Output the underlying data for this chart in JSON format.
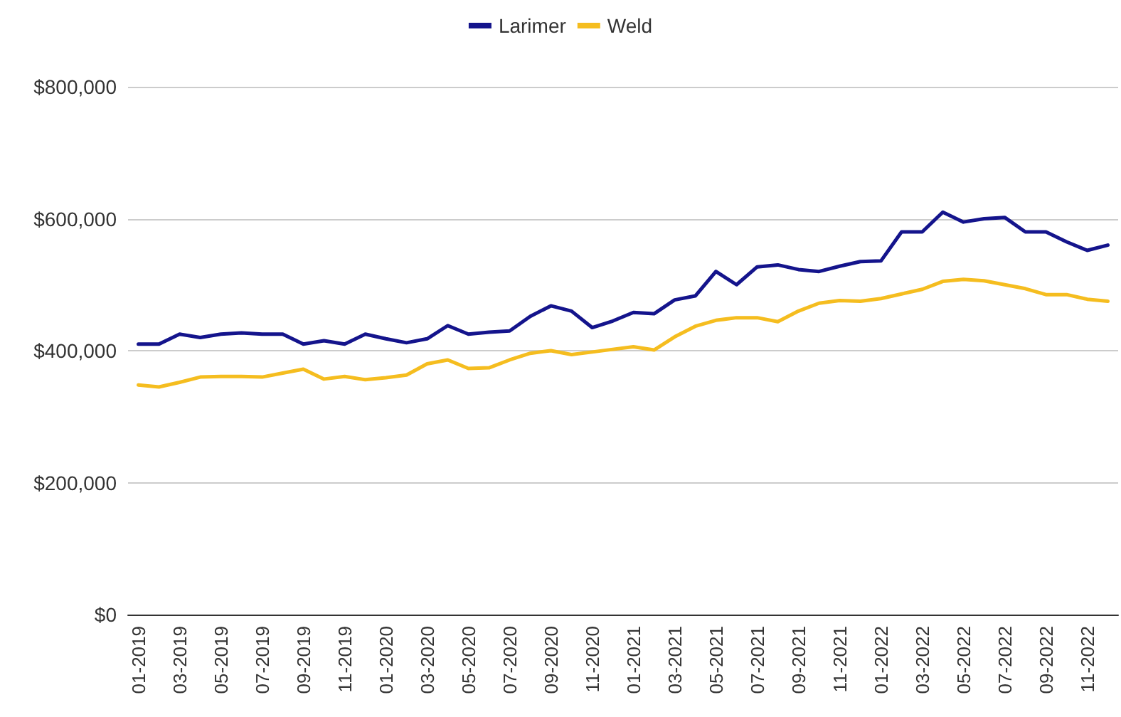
{
  "chart_data": {
    "type": "line",
    "categories": [
      "01-2019",
      null,
      "03-2019",
      null,
      "05-2019",
      null,
      "07-2019",
      null,
      "09-2019",
      null,
      "11-2019",
      null,
      "01-2020",
      null,
      "03-2020",
      null,
      "05-2020",
      null,
      "07-2020",
      null,
      "09-2020",
      null,
      "11-2020",
      null,
      "01-2021",
      null,
      "03-2021",
      null,
      "05-2021",
      null,
      "07-2021",
      null,
      "09-2021",
      null,
      "11-2021",
      null,
      "01-2022",
      null,
      "03-2022",
      null,
      "05-2022",
      null,
      "07-2022",
      null,
      "09-2022",
      null,
      "11-2022",
      null
    ],
    "series": [
      {
        "name": "Larimer",
        "color": "#14148c",
        "values": [
          410000,
          410000,
          425000,
          420000,
          425000,
          427000,
          425000,
          425000,
          410000,
          415000,
          410000,
          425000,
          418000,
          412000,
          418000,
          438000,
          425000,
          428000,
          430000,
          452000,
          468000,
          460000,
          435000,
          445000,
          458000,
          456000,
          477000,
          483000,
          520000,
          500000,
          527000,
          530000,
          523000,
          520000,
          528000,
          535000,
          536000,
          580000,
          580000,
          610000,
          595000,
          600000,
          602000,
          580000,
          580000,
          565000,
          552000,
          560000
        ]
      },
      {
        "name": "Weld",
        "color": "#f5bd1f",
        "values": [
          348000,
          345000,
          352000,
          360000,
          361000,
          361000,
          360000,
          366000,
          372000,
          357000,
          361000,
          356000,
          359000,
          363000,
          380000,
          386000,
          373000,
          374000,
          386000,
          396000,
          400000,
          394000,
          398000,
          402000,
          406000,
          401000,
          421000,
          437000,
          446000,
          450000,
          450000,
          444000,
          460000,
          472000,
          476000,
          475000,
          479000,
          486000,
          493000,
          505000,
          508000,
          506000,
          500000,
          494000,
          485000,
          485000,
          478000,
          475000
        ]
      }
    ],
    "ylim": [
      0,
      800000
    ],
    "yticks": [
      {
        "value": 0,
        "label": "$0"
      },
      {
        "value": 200000,
        "label": "$200,000"
      },
      {
        "value": 400000,
        "label": "$400,000"
      },
      {
        "value": 600000,
        "label": "$600,000"
      },
      {
        "value": 800000,
        "label": "$800,000"
      }
    ],
    "grid": "y",
    "legend": "top",
    "marker": "none",
    "line_style": "solid"
  }
}
